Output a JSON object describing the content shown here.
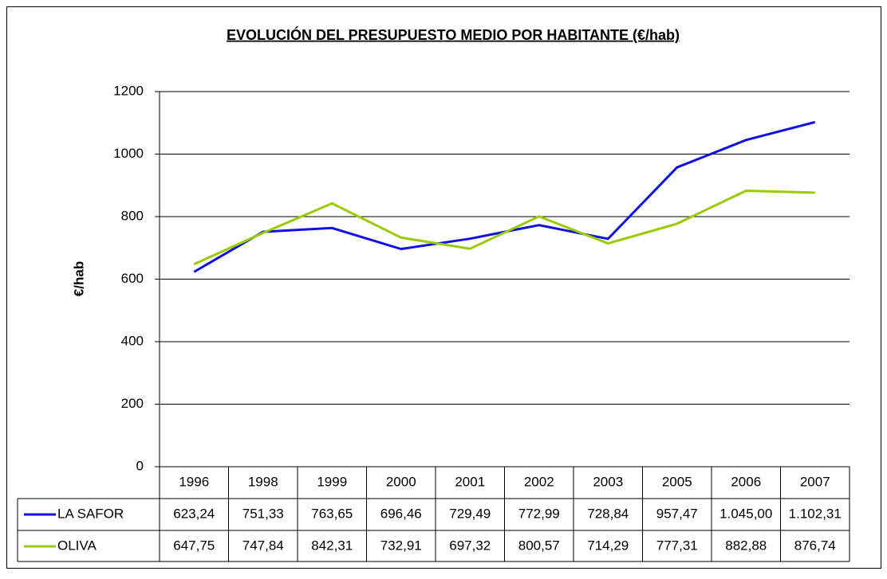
{
  "chart_data": {
    "type": "line",
    "title": "EVOLUCIÓN DEL PRESUPUESTO MEDIO POR HABITANTE (€/hab)",
    "y_label": "€/hab",
    "categories": [
      "1996",
      "1998",
      "1999",
      "2000",
      "2001",
      "2002",
      "2003",
      "2005",
      "2006",
      "2007"
    ],
    "series": [
      {
        "name": "LA SAFOR",
        "color": "#1010e0",
        "values": [
          623.24,
          751.33,
          763.65,
          696.46,
          729.49,
          772.99,
          728.84,
          957.47,
          1045.0,
          1102.31
        ],
        "value_labels": [
          "623,24",
          "751,33",
          "763,65",
          "696,46",
          "729,49",
          "772,99",
          "728,84",
          "957,47",
          "1.045,00",
          "1.102,31"
        ]
      },
      {
        "name": "OLIVA",
        "color": "#99cc00",
        "values": [
          647.75,
          747.84,
          842.31,
          732.91,
          697.32,
          800.57,
          714.29,
          777.31,
          882.88,
          876.74
        ],
        "value_labels": [
          "647,75",
          "747,84",
          "842,31",
          "732,91",
          "697,32",
          "800,57",
          "714,29",
          "777,31",
          "882,88",
          "876,74"
        ]
      }
    ],
    "ylim": [
      0,
      1200
    ],
    "yticks": [
      0,
      200,
      400,
      600,
      800,
      1000,
      1200
    ],
    "grid": true
  }
}
